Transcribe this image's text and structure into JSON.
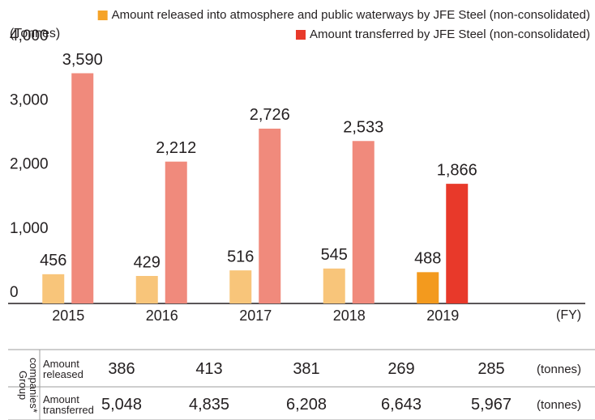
{
  "chart_data": {
    "type": "bar",
    "y_label": "(Tonnes)",
    "x_label": "(FY)",
    "categories": [
      "2015",
      "2016",
      "2017",
      "2018",
      "2019"
    ],
    "series": [
      {
        "name": "Amount released into atmosphere and public waterways by JFE Steel (non-consolidated)",
        "color": "#f5a328",
        "colors": [
          "#f8c57a",
          "#f8c57a",
          "#f8c57a",
          "#f8c57a",
          "#f39a1e"
        ],
        "values": [
          456,
          429,
          516,
          545,
          488
        ]
      },
      {
        "name": "Amount transferred by JFE Steel (non-consolidated)",
        "color": "#e8392a",
        "colors": [
          "#f08a7c",
          "#f08a7c",
          "#f08a7c",
          "#f08a7c",
          "#e8392a"
        ],
        "values": [
          3590,
          2212,
          2726,
          2533,
          1866
        ],
        "value_labels": [
          "3,590",
          "2,212",
          "2,726",
          "2,533",
          "1,866"
        ]
      }
    ],
    "ylim": [
      0,
      4000
    ],
    "yticks": [
      0,
      {
        "value": 1000,
        "label": "1,000"
      },
      {
        "value": 2000,
        "label": "2,000"
      },
      {
        "value": 3000,
        "label": "3,000"
      },
      {
        "value": 4000,
        "label": "4,000"
      }
    ],
    "grid": false,
    "legend": "top-right",
    "table": {
      "group_label": "Group companies*",
      "unit": "(tonnes)",
      "rows": [
        {
          "label": "Amount released",
          "values": [
            386,
            413,
            381,
            269,
            285
          ]
        },
        {
          "label": "Amount transferred",
          "values": [
            5048,
            4835,
            6208,
            6643,
            5967
          ],
          "value_labels": [
            "5,048",
            "4,835",
            "6,208",
            "6,643",
            "5,967"
          ]
        }
      ]
    }
  }
}
